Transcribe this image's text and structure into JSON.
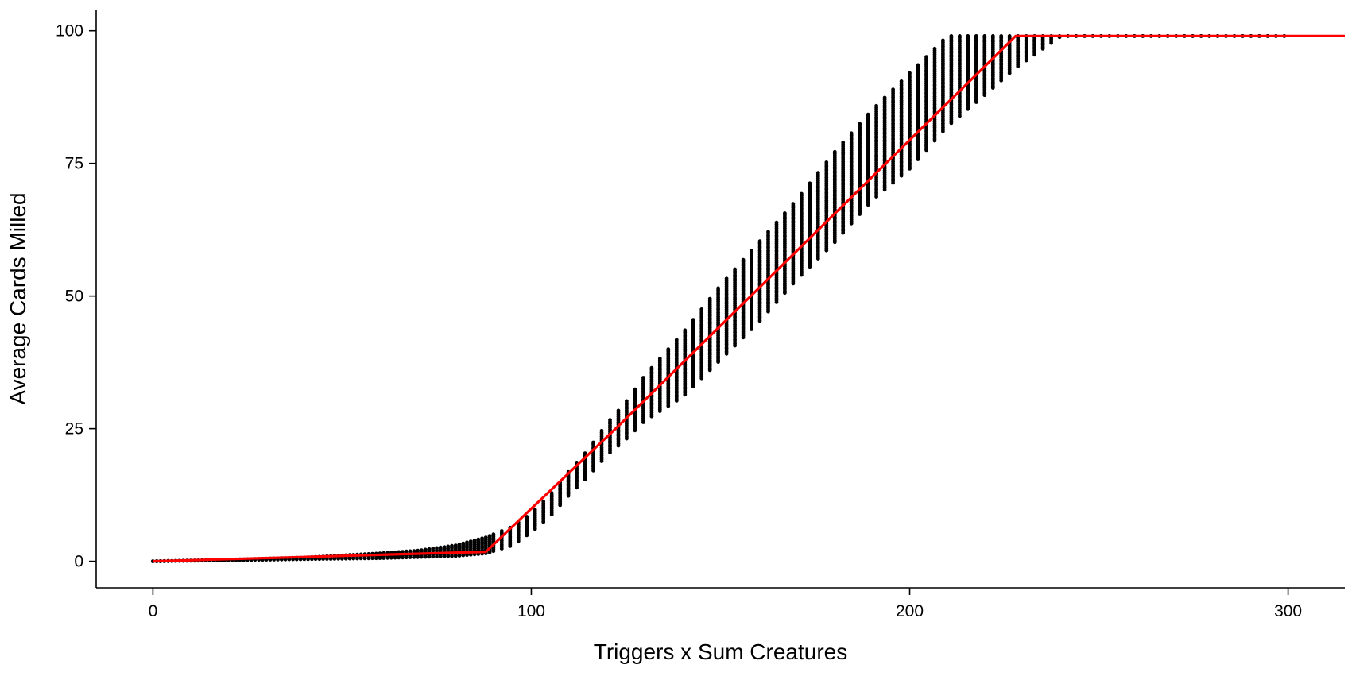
{
  "chart_data": {
    "type": "scatter",
    "title": "",
    "xlabel": "Triggers x Sum Creatures",
    "ylabel": "Average Cards Milled",
    "xlim": [
      -15,
      315
    ],
    "ylim": [
      -5,
      104
    ],
    "x_ticks": [
      {
        "value": 0,
        "label": "0"
      },
      {
        "value": 100,
        "label": "100"
      },
      {
        "value": 200,
        "label": "200"
      },
      {
        "value": 300,
        "label": "300"
      }
    ],
    "y_ticks": [
      {
        "value": 0,
        "label": "0"
      },
      {
        "value": 25,
        "label": "25"
      },
      {
        "value": 50,
        "label": "50"
      },
      {
        "value": 75,
        "label": "75"
      },
      {
        "value": 100,
        "label": "100"
      }
    ],
    "grid": false,
    "legend": "none",
    "colors": {
      "points": "#000000",
      "fit_line": "#ff0000"
    },
    "scatter_bands": [
      {
        "x": 0,
        "ymin": 0,
        "ymax": 0
      },
      {
        "x": 20,
        "ymin": 0.2,
        "ymax": 0.3
      },
      {
        "x": 40,
        "ymin": 0.4,
        "ymax": 0.7
      },
      {
        "x": 60,
        "ymin": 0.6,
        "ymax": 1.5
      },
      {
        "x": 70,
        "ymin": 0.8,
        "ymax": 2.0
      },
      {
        "x": 80,
        "ymin": 1.0,
        "ymax": 3.0
      },
      {
        "x": 88,
        "ymin": 1.5,
        "ymax": 4.5
      },
      {
        "x": 95,
        "ymin": 3.0,
        "ymax": 6.5
      },
      {
        "x": 100,
        "ymin": 5.5,
        "ymax": 9.0
      },
      {
        "x": 105,
        "ymin": 8.5,
        "ymax": 12.5
      },
      {
        "x": 110,
        "ymin": 12.5,
        "ymax": 17.0
      },
      {
        "x": 115,
        "ymin": 16.0,
        "ymax": 21.0
      },
      {
        "x": 120,
        "ymin": 20.0,
        "ymax": 26.0
      },
      {
        "x": 125,
        "ymin": 23.0,
        "ymax": 30.0
      },
      {
        "x": 130,
        "ymin": 26.5,
        "ymax": 35.0
      },
      {
        "x": 140,
        "ymin": 31.0,
        "ymax": 43.0
      },
      {
        "x": 150,
        "ymin": 38.0,
        "ymax": 52.0
      },
      {
        "x": 160,
        "ymin": 45.0,
        "ymax": 60.0
      },
      {
        "x": 170,
        "ymin": 53.0,
        "ymax": 68.0
      },
      {
        "x": 180,
        "ymin": 60.0,
        "ymax": 77.0
      },
      {
        "x": 190,
        "ymin": 68.0,
        "ymax": 85.0
      },
      {
        "x": 200,
        "ymin": 74.0,
        "ymax": 92.0
      },
      {
        "x": 210,
        "ymin": 82.0,
        "ymax": 99.0
      },
      {
        "x": 220,
        "ymin": 88.0,
        "ymax": 99.0
      },
      {
        "x": 228,
        "ymin": 93.0,
        "ymax": 99.0
      },
      {
        "x": 235,
        "ymin": 96.5,
        "ymax": 99.0
      },
      {
        "x": 240,
        "ymin": 99.0,
        "ymax": 99.0
      },
      {
        "x": 300,
        "ymin": 99.0,
        "ymax": 99.0
      }
    ],
    "series": [
      {
        "type": "line",
        "x": [
          0,
          88,
          123,
          228,
          315
        ],
        "y": [
          0,
          1.8,
          25.5,
          99.0,
          99.0
        ]
      }
    ]
  }
}
